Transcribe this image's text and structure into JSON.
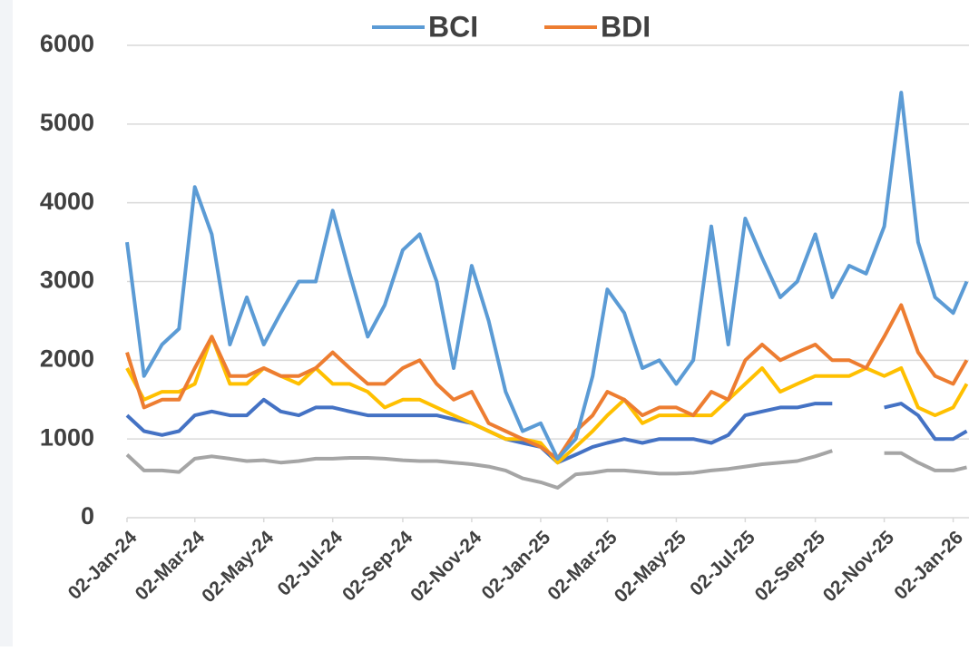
{
  "chart_data": {
    "type": "line",
    "x": [
      "2024-01-02",
      "2024-01-17",
      "2024-02-02",
      "2024-02-17",
      "2024-03-02",
      "2024-03-17",
      "2024-04-02",
      "2024-04-17",
      "2024-05-02",
      "2024-05-17",
      "2024-06-02",
      "2024-06-17",
      "2024-07-02",
      "2024-07-17",
      "2024-08-02",
      "2024-08-17",
      "2024-09-02",
      "2024-09-17",
      "2024-10-02",
      "2024-10-17",
      "2024-11-02",
      "2024-11-17",
      "2024-12-02",
      "2024-12-17",
      "2025-01-02",
      "2025-01-17",
      "2025-02-02",
      "2025-02-17",
      "2025-03-02",
      "2025-03-17",
      "2025-04-02",
      "2025-04-17",
      "2025-05-02",
      "2025-05-17",
      "2025-06-02",
      "2025-06-17",
      "2025-07-02",
      "2025-07-17",
      "2025-08-02",
      "2025-08-17",
      "2025-09-02",
      "2025-09-17",
      "2025-10-02",
      "2025-10-17",
      "2025-11-02",
      "2025-11-17",
      "2025-12-02",
      "2025-12-17",
      "2026-01-02",
      "2026-01-14"
    ],
    "series": [
      {
        "name": "BCI",
        "color": "#5b9bd5",
        "values": [
          3500,
          1800,
          2200,
          2400,
          4200,
          3600,
          2200,
          2800,
          2200,
          2600,
          3000,
          3000,
          3900,
          3100,
          2300,
          2700,
          3400,
          3600,
          3000,
          1900,
          3200,
          2500,
          1600,
          1100,
          1200,
          750,
          1000,
          1800,
          2900,
          2600,
          1900,
          2000,
          1700,
          2000,
          3700,
          2200,
          3800,
          3300,
          2800,
          3000,
          3600,
          2800,
          3200,
          3100,
          3700,
          5400,
          3500,
          2800,
          2600,
          3000
        ]
      },
      {
        "name": "BDI",
        "color": "#ed7d31",
        "values": [
          2100,
          1400,
          1500,
          1500,
          1900,
          2300,
          1800,
          1800,
          1900,
          1800,
          1800,
          1900,
          2100,
          1900,
          1700,
          1700,
          1900,
          2000,
          1700,
          1500,
          1600,
          1200,
          1100,
          1000,
          900,
          750,
          1100,
          1300,
          1600,
          1500,
          1300,
          1400,
          1400,
          1300,
          1600,
          1500,
          2000,
          2200,
          2000,
          2100,
          2200,
          2000,
          2000,
          1900,
          2300,
          2700,
          2100,
          1800,
          1700,
          2000
        ]
      },
      {
        "color": "#ffc000",
        "values": [
          1900,
          1500,
          1600,
          1600,
          1700,
          2300,
          1700,
          1700,
          1900,
          1800,
          1700,
          1900,
          1700,
          1700,
          1600,
          1400,
          1500,
          1500,
          1400,
          1300,
          1200,
          1100,
          1000,
          1000,
          950,
          700,
          900,
          1100,
          1300,
          1500,
          1200,
          1300,
          1300,
          1300,
          1300,
          1500,
          1700,
          1900,
          1600,
          1700,
          1800,
          1800,
          1800,
          1900,
          1800,
          1900,
          1400,
          1300,
          1400,
          1700
        ]
      },
      {
        "color": "#4472c4",
        "values": [
          1300,
          1100,
          1050,
          1100,
          1300,
          1350,
          1300,
          1300,
          1500,
          1350,
          1300,
          1400,
          1400,
          1350,
          1300,
          1300,
          1300,
          1300,
          1300,
          1250,
          1200,
          1100,
          1000,
          950,
          900,
          700,
          800,
          900,
          950,
          1000,
          950,
          1000,
          1000,
          1000,
          950,
          1050,
          1300,
          1350,
          1400,
          1400,
          1450,
          1450,
          null,
          null,
          1400,
          1450,
          1300,
          1000,
          1000,
          1100
        ]
      },
      {
        "color": "#a5a5a5",
        "values": [
          800,
          600,
          600,
          580,
          750,
          780,
          750,
          720,
          730,
          700,
          720,
          750,
          750,
          760,
          760,
          750,
          730,
          720,
          720,
          700,
          680,
          650,
          600,
          500,
          450,
          380,
          550,
          570,
          600,
          600,
          580,
          560,
          560,
          570,
          600,
          620,
          650,
          680,
          700,
          720,
          780,
          850,
          null,
          null,
          820,
          820,
          700,
          600,
          600,
          640
        ]
      }
    ],
    "xlim": [
      "2024-01-02",
      "2026-01-16"
    ],
    "xticks": [
      {
        "value": "2024-01-02",
        "label": "02-Jan-24"
      },
      {
        "value": "2024-03-02",
        "label": "02-Mar-24"
      },
      {
        "value": "2024-05-02",
        "label": "02-May-24"
      },
      {
        "value": "2024-07-02",
        "label": "02-Jul-24"
      },
      {
        "value": "2024-09-02",
        "label": "02-Sep-24"
      },
      {
        "value": "2024-11-02",
        "label": "02-Nov-24"
      },
      {
        "value": "2025-01-02",
        "label": "02-Jan-25"
      },
      {
        "value": "2025-03-02",
        "label": "02-Mar-25"
      },
      {
        "value": "2025-05-02",
        "label": "02-May-25"
      },
      {
        "value": "2025-07-02",
        "label": "02-Jul-25"
      },
      {
        "value": "2025-09-02",
        "label": "02-Sep-25"
      },
      {
        "value": "2025-11-02",
        "label": "02-Nov-25"
      },
      {
        "value": "2026-01-02",
        "label": "02-Jan-26"
      }
    ],
    "ylim": [
      0,
      6000
    ],
    "yticks": [
      0,
      1000,
      2000,
      3000,
      4000,
      5000,
      6000
    ],
    "grid": true,
    "legend": "top"
  }
}
